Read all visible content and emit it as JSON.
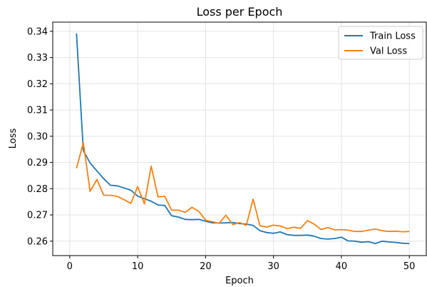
{
  "chart_data": {
    "type": "line",
    "title": "Loss per Epoch",
    "xlabel": "Epoch",
    "ylabel": "Loss",
    "xlim": [
      -2.5,
      52.5
    ],
    "ylim": [
      0.2545,
      0.3435
    ],
    "xticks": [
      0,
      10,
      20,
      30,
      40,
      50
    ],
    "yticks": [
      0.26,
      0.27,
      0.28,
      0.29,
      0.3,
      0.31,
      0.32,
      0.33,
      0.34
    ],
    "grid": true,
    "legend_position": "top-right",
    "x": [
      1,
      2,
      3,
      4,
      5,
      6,
      7,
      8,
      9,
      10,
      11,
      12,
      13,
      14,
      15,
      16,
      17,
      18,
      19,
      20,
      21,
      22,
      23,
      24,
      25,
      26,
      27,
      28,
      29,
      30,
      31,
      32,
      33,
      34,
      35,
      36,
      37,
      38,
      39,
      40,
      41,
      42,
      43,
      44,
      45,
      46,
      47,
      48,
      49,
      50
    ],
    "series": [
      {
        "name": "Train Loss",
        "color": "#1f77b4",
        "values": [
          0.3392,
          0.2945,
          0.2898,
          0.2868,
          0.2838,
          0.2813,
          0.2811,
          0.2803,
          0.2794,
          0.2772,
          0.2762,
          0.2752,
          0.2738,
          0.2736,
          0.2697,
          0.2692,
          0.2683,
          0.2682,
          0.2683,
          0.2676,
          0.267,
          0.2669,
          0.267,
          0.2671,
          0.2667,
          0.2665,
          0.266,
          0.264,
          0.2633,
          0.263,
          0.2635,
          0.2625,
          0.2622,
          0.2622,
          0.2623,
          0.2619,
          0.261,
          0.2608,
          0.261,
          0.2615,
          0.2601,
          0.26,
          0.2596,
          0.2598,
          0.2591,
          0.26,
          0.2597,
          0.2595,
          0.2592,
          0.2591
        ]
      },
      {
        "name": "Val Loss",
        "color": "#ff7f0e",
        "values": [
          0.2878,
          0.2975,
          0.279,
          0.2835,
          0.2775,
          0.2775,
          0.2771,
          0.2758,
          0.2744,
          0.2808,
          0.2742,
          0.2886,
          0.2769,
          0.2771,
          0.2718,
          0.2718,
          0.271,
          0.2729,
          0.2714,
          0.268,
          0.2674,
          0.2668,
          0.2699,
          0.2663,
          0.2671,
          0.266,
          0.276,
          0.2659,
          0.2654,
          0.2661,
          0.2658,
          0.2648,
          0.2653,
          0.2649,
          0.2678,
          0.2665,
          0.2644,
          0.2652,
          0.2643,
          0.2644,
          0.2642,
          0.2637,
          0.2637,
          0.2642,
          0.2646,
          0.264,
          0.2637,
          0.2638,
          0.2636,
          0.2637
        ]
      }
    ]
  }
}
